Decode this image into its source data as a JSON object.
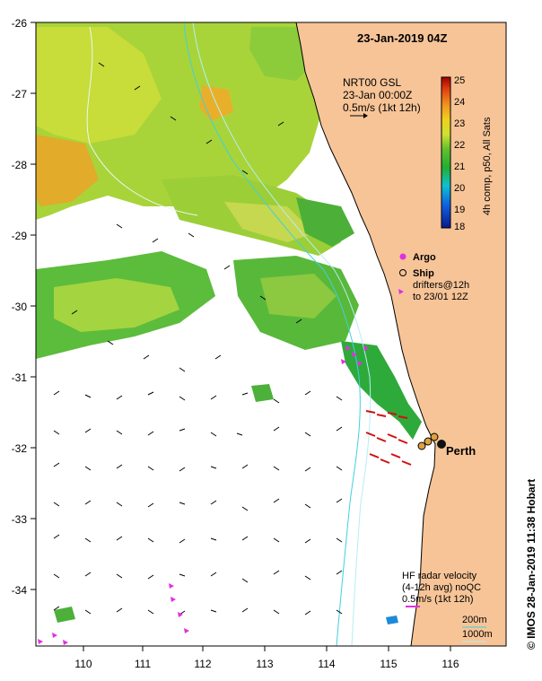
{
  "map": {
    "title": "23-Jan-2019 04Z",
    "product_lines": [
      "NRT00 GSL",
      "23-Jan 00:00Z",
      "0.5m/s (1kt 12h)"
    ],
    "colorbar": {
      "label": "4h comp, p50, All Sats",
      "ticks": [
        "25",
        "24",
        "23",
        "22",
        "21",
        "20",
        "19",
        "18"
      ],
      "min": 18,
      "max": 25
    },
    "legend": {
      "argo": "Argo",
      "ship": "Ship",
      "drifters_line1": "drifters@12h",
      "drifters_line2": "to 23/01 12Z"
    },
    "city": "Perth",
    "hf_radar": [
      "HF radar velocity",
      "(4-12h avg) noQC",
      "0.5m/s (1kt 12h)"
    ],
    "isobaths": [
      "200m",
      "1000m"
    ],
    "credit": "© IMOS 28-Jan-2019 11:38 Hobart",
    "lat_ticks": [
      "-26",
      "-27",
      "-28",
      "-29",
      "-30",
      "-31",
      "-32",
      "-33",
      "-34"
    ],
    "lon_ticks": [
      "110",
      "111",
      "112",
      "113",
      "114",
      "115",
      "116"
    ],
    "colors": {
      "land": "#f7c497",
      "coast": "#000000",
      "isobath_200": "#3fd0e0",
      "isobath_1000": "#b4eef4",
      "argo": "#e030e0",
      "drifter": "#e030e0",
      "radar_arrow": "#d01010"
    }
  }
}
